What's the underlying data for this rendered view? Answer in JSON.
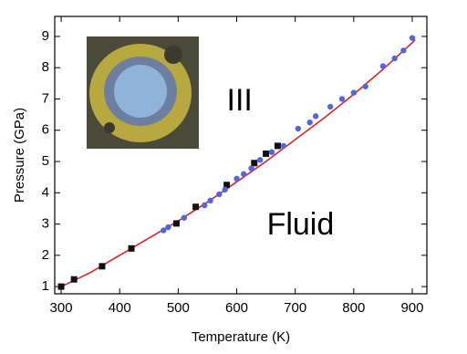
{
  "chart_data": {
    "type": "scatter",
    "xlabel": "Temperature (K)",
    "ylabel": "Pressure (GPa)",
    "xlim": [
      289,
      925
    ],
    "ylim": [
      0.77,
      9.64
    ],
    "xticks": [
      300,
      400,
      500,
      600,
      700,
      800,
      900
    ],
    "yticks": [
      1,
      2,
      3,
      4,
      5,
      6,
      7,
      8,
      9
    ],
    "annotations": [
      {
        "text": "III",
        "x": 605,
        "y": 6.9
      },
      {
        "text": "Fluid",
        "x": 709,
        "y": 2.93
      }
    ],
    "series": [
      {
        "color": "#111111",
        "marker": "square",
        "x": [
          300,
          322,
          370,
          420,
          497,
          530,
          583,
          630,
          650,
          670
        ],
        "values": [
          1.0,
          1.23,
          1.65,
          2.22,
          3.02,
          3.55,
          4.25,
          4.95,
          5.25,
          5.5
        ]
      },
      {
        "color": "#5566dd",
        "marker": "circle",
        "x": [
          475,
          483,
          510,
          545,
          555,
          570,
          580,
          600,
          612,
          625,
          640,
          660,
          680,
          705,
          725,
          735,
          760,
          780,
          800,
          820,
          850,
          870,
          885,
          900
        ],
        "values": [
          2.8,
          2.9,
          3.2,
          3.6,
          3.75,
          3.95,
          4.1,
          4.45,
          4.6,
          4.78,
          5.05,
          5.3,
          5.5,
          6.05,
          6.25,
          6.45,
          6.75,
          7.0,
          7.2,
          7.4,
          8.05,
          8.3,
          8.55,
          8.95
        ]
      },
      {
        "color": "#dd2222",
        "marker": "line",
        "x": [
          295,
          350,
          400,
          450,
          500,
          550,
          600,
          650,
          700,
          750,
          800,
          850,
          900,
          905
        ],
        "values": [
          0.95,
          1.45,
          2.0,
          2.55,
          3.1,
          3.7,
          4.35,
          5.0,
          5.7,
          6.4,
          7.15,
          7.95,
          8.8,
          8.9
        ]
      }
    ]
  }
}
